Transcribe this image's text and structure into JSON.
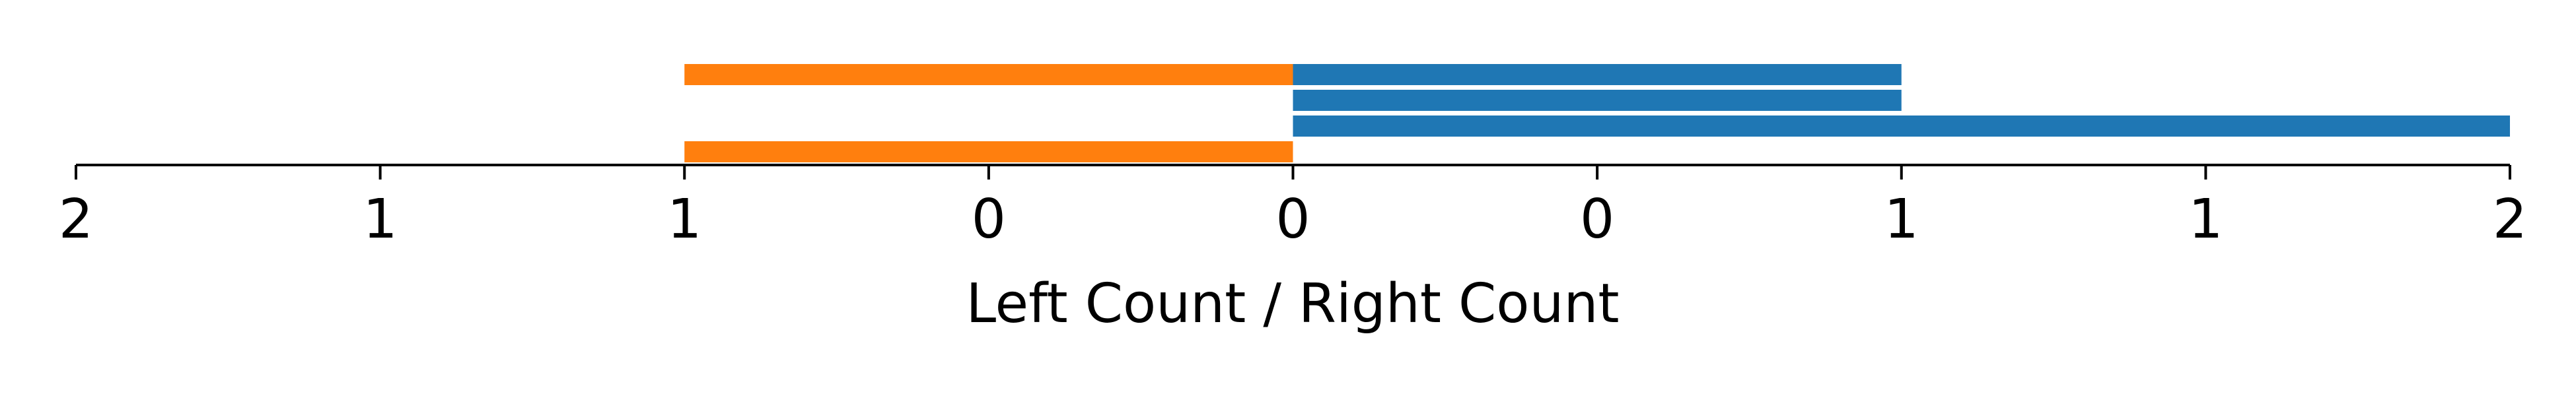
{
  "chart_data": {
    "type": "bar",
    "orientation": "horizontal-diverging",
    "xlabel": "Left Count / Right Count",
    "x_tick_labels": [
      "2",
      "1",
      "1",
      "0",
      "0",
      "0",
      "1",
      "1",
      "2"
    ],
    "xlim": [
      -2,
      2
    ],
    "grid": false,
    "legend": "none",
    "rows": [
      {
        "left": 1,
        "right": 1
      },
      {
        "left": 0,
        "right": 1
      },
      {
        "left": 0,
        "right": 2
      },
      {
        "left": 1,
        "right": 0
      }
    ],
    "series": [
      {
        "side": "left",
        "color": "#ff7f0e",
        "values": [
          1,
          0,
          0,
          1
        ]
      },
      {
        "side": "right",
        "color": "#1f77b4",
        "values": [
          1,
          1,
          2,
          0
        ]
      }
    ]
  }
}
